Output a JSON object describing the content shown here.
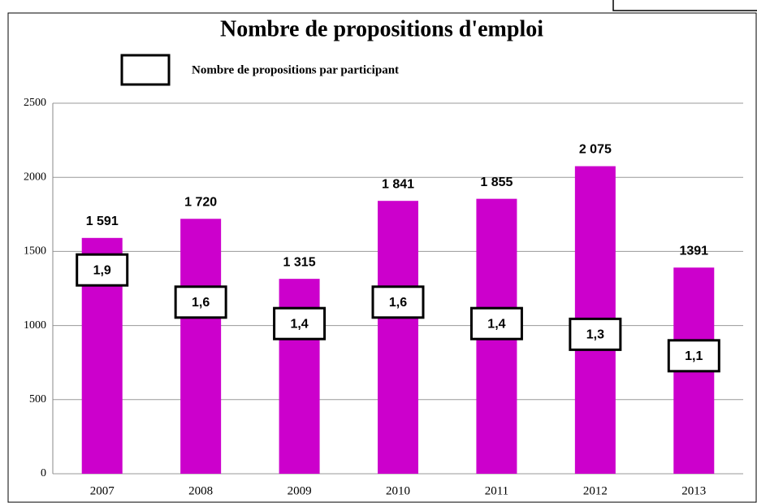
{
  "chart_data": {
    "type": "bar",
    "title": "Nombre de propositions d'emploi",
    "categories": [
      "2007",
      "2008",
      "2009",
      "2010",
      "2011",
      "2012",
      "2013"
    ],
    "values": [
      1591,
      1720,
      1315,
      1841,
      1855,
      2075,
      1391
    ],
    "value_labels": [
      "1 591",
      "1 720",
      "1 315",
      "1 841",
      "1 855",
      "2 075",
      "1391"
    ],
    "color": "#cc00cc",
    "ratio_series": {
      "name": "Nombre de propositions par participant",
      "values": [
        1.9,
        1.6,
        1.4,
        1.6,
        1.4,
        1.3,
        1.1
      ],
      "value_labels": [
        "1,9",
        "1,6",
        "1,4",
        "1,6",
        "1,4",
        "1,3",
        "1,1"
      ]
    },
    "ylim": [
      0,
      2500
    ],
    "yticks": [
      0,
      500,
      1000,
      1500,
      2000,
      2500
    ],
    "grid": true
  }
}
